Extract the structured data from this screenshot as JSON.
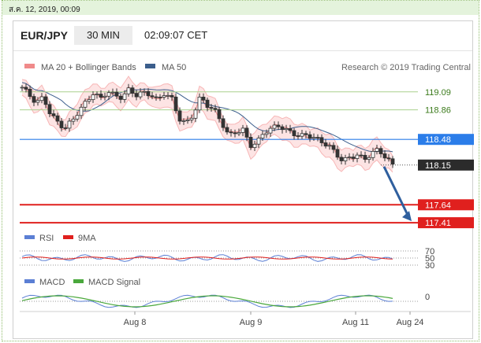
{
  "page": {
    "date_text": "ส.ค. 12, 2019, 00:09"
  },
  "header": {
    "pair": "EUR/JPY",
    "timeframe": "30 MIN",
    "time": "02:09:07 CET"
  },
  "legend": {
    "ma20_label": "MA 20 + Bollinger Bands",
    "ma20_color": "#f08a8a",
    "ma50_label": "MA 50",
    "ma50_color": "#3b5e8c",
    "credit": "Research © 2019 Trading Central"
  },
  "rsi_legend": {
    "rsi_label": "RSI",
    "rsi_color": "#5b7fd4",
    "ma_label": "9MA",
    "ma_color": "#e0201e"
  },
  "macd_legend": {
    "macd_label": "MACD",
    "macd_color": "#5b7fd4",
    "signal_label": "MACD Signal",
    "signal_color": "#4aa83c"
  },
  "chart_data": [
    {
      "type": "candlestick",
      "ylim": [
        117.34,
        119.26
      ],
      "x_ticks": [
        "Aug 8",
        "Aug 9",
        "Aug 11",
        "Aug 24"
      ],
      "current_price": "118.15",
      "levels": [
        {
          "value": 119.09,
          "label": "119.09",
          "role": "resistance",
          "color": "#a9d18e"
        },
        {
          "value": 118.86,
          "label": "118.86",
          "role": "resistance",
          "color": "#a9d18e"
        },
        {
          "value": 118.48,
          "label": "118.48",
          "role": "pivot",
          "color": "#2b7de9"
        },
        {
          "value": 117.64,
          "label": "117.64",
          "role": "support",
          "color": "#e0201e"
        },
        {
          "value": 117.41,
          "label": "117.41",
          "role": "support",
          "color": "#e0201e"
        }
      ],
      "close_path": [
        119.15,
        119.05,
        118.95,
        119.02,
        118.8,
        118.7,
        118.62,
        118.72,
        118.85,
        118.96,
        119.08,
        119.0,
        119.1,
        119.04,
        119.02,
        119.12,
        119.05,
        119.08,
        119.06,
        118.98,
        119.08,
        119.0,
        118.75,
        118.68,
        118.8,
        119.02,
        118.92,
        118.85,
        118.7,
        118.52,
        118.58,
        118.6,
        118.4,
        118.44,
        118.58,
        118.62,
        118.66,
        118.6,
        118.56,
        118.52,
        118.54,
        118.5,
        118.45,
        118.4,
        118.3,
        118.2,
        118.25,
        118.28,
        118.22,
        118.3,
        118.35,
        118.25,
        118.15
      ],
      "forecast": {
        "from": 118.15,
        "to": 117.41
      }
    },
    {
      "type": "line",
      "name": "RSI",
      "ticks": [
        "70",
        "50",
        "30"
      ]
    },
    {
      "type": "line",
      "name": "MACD",
      "ticks": [
        "0"
      ]
    }
  ]
}
